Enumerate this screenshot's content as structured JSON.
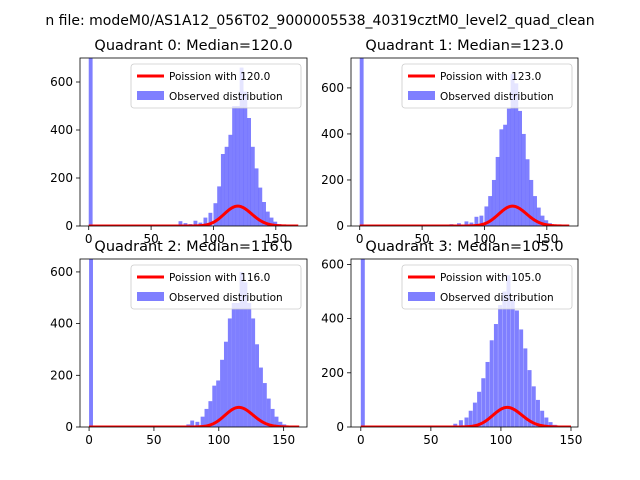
{
  "suptitle": "n file: modeM0/AS1A12_056T02_9000005538_40319cztM0_level2_quad_clean",
  "colors": {
    "bar": "#0000ff",
    "bar_alpha": 0.5,
    "fit_line": "#ff0000",
    "axis": "#000000"
  },
  "chart_data": [
    {
      "type": "bar",
      "title": "Quadrant 0: Median=120.0",
      "xlabel": "",
      "ylabel": "",
      "xlim": [
        -7,
        175
      ],
      "ylim": [
        0,
        700
      ],
      "xticks": [
        0,
        50,
        100,
        150
      ],
      "yticks": [
        0,
        200,
        400,
        600
      ],
      "grid": false,
      "legend_position": "upper-right",
      "series": [
        {
          "name": "Poission with 120.0",
          "kind": "line",
          "mean": 120.0,
          "scale": 2275,
          "x_range": [
            0,
            168
          ]
        },
        {
          "name": "Observed distribution",
          "kind": "histogram",
          "bin_width": 3.1,
          "bins": [
            {
              "x": 0,
              "y": 700
            },
            {
              "x": 3,
              "y": 3
            },
            {
              "x": 50,
              "y": 2
            },
            {
              "x": 65,
              "y": 3
            },
            {
              "x": 72,
              "y": 20
            },
            {
              "x": 76,
              "y": 12
            },
            {
              "x": 80,
              "y": 8
            },
            {
              "x": 84,
              "y": 22
            },
            {
              "x": 88,
              "y": 14
            },
            {
              "x": 92,
              "y": 35
            },
            {
              "x": 96,
              "y": 55
            },
            {
              "x": 100,
              "y": 95
            },
            {
              "x": 103,
              "y": 165
            },
            {
              "x": 106,
              "y": 300
            },
            {
              "x": 109,
              "y": 330
            },
            {
              "x": 112,
              "y": 380
            },
            {
              "x": 115,
              "y": 500
            },
            {
              "x": 118,
              "y": 500
            },
            {
              "x": 121,
              "y": 660
            },
            {
              "x": 124,
              "y": 560
            },
            {
              "x": 127,
              "y": 450
            },
            {
              "x": 130,
              "y": 330
            },
            {
              "x": 133,
              "y": 240
            },
            {
              "x": 136,
              "y": 160
            },
            {
              "x": 139,
              "y": 100
            },
            {
              "x": 142,
              "y": 60
            },
            {
              "x": 145,
              "y": 35
            },
            {
              "x": 148,
              "y": 18
            },
            {
              "x": 151,
              "y": 8
            },
            {
              "x": 154,
              "y": 4
            },
            {
              "x": 160,
              "y": 2
            }
          ]
        }
      ]
    },
    {
      "type": "bar",
      "title": "Quadrant 1: Median=123.0",
      "xlabel": "",
      "ylabel": "",
      "xlim": [
        -7,
        175
      ],
      "ylim": [
        0,
        730
      ],
      "xticks": [
        0,
        50,
        100,
        150
      ],
      "yticks": [
        0,
        200,
        400,
        600
      ],
      "grid": false,
      "legend_position": "upper-right",
      "series": [
        {
          "name": "Poission with 123.0",
          "kind": "line",
          "mean": 123.0,
          "scale": 2400,
          "x_range": [
            0,
            168
          ]
        },
        {
          "name": "Observed distribution",
          "kind": "histogram",
          "bin_width": 3.1,
          "bins": [
            {
              "x": 0,
              "y": 730
            },
            {
              "x": 3,
              "y": 3
            },
            {
              "x": 40,
              "y": 2
            },
            {
              "x": 72,
              "y": 8
            },
            {
              "x": 78,
              "y": 12
            },
            {
              "x": 84,
              "y": 20
            },
            {
              "x": 88,
              "y": 15
            },
            {
              "x": 92,
              "y": 40
            },
            {
              "x": 96,
              "y": 45
            },
            {
              "x": 100,
              "y": 85
            },
            {
              "x": 103,
              "y": 130
            },
            {
              "x": 106,
              "y": 200
            },
            {
              "x": 109,
              "y": 300
            },
            {
              "x": 112,
              "y": 420
            },
            {
              "x": 115,
              "y": 440
            },
            {
              "x": 118,
              "y": 510
            },
            {
              "x": 121,
              "y": 660
            },
            {
              "x": 124,
              "y": 620
            },
            {
              "x": 127,
              "y": 500
            },
            {
              "x": 130,
              "y": 400
            },
            {
              "x": 133,
              "y": 290
            },
            {
              "x": 136,
              "y": 200
            },
            {
              "x": 139,
              "y": 130
            },
            {
              "x": 142,
              "y": 80
            },
            {
              "x": 145,
              "y": 45
            },
            {
              "x": 148,
              "y": 25
            },
            {
              "x": 151,
              "y": 12
            },
            {
              "x": 154,
              "y": 6
            },
            {
              "x": 160,
              "y": 2
            }
          ]
        }
      ]
    },
    {
      "type": "bar",
      "title": "Quadrant 2: Median=116.0",
      "xlabel": "",
      "ylabel": "",
      "xlim": [
        -7,
        168
      ],
      "ylim": [
        0,
        650
      ],
      "xticks": [
        0,
        50,
        100,
        150
      ],
      "yticks": [
        0,
        200,
        400,
        600
      ],
      "grid": false,
      "legend_position": "upper-right",
      "series": [
        {
          "name": "Poission with 116.0",
          "kind": "line",
          "mean": 116.0,
          "scale": 2050,
          "x_range": [
            0,
            162
          ]
        },
        {
          "name": "Observed distribution",
          "kind": "histogram",
          "bin_width": 3.0,
          "bins": [
            {
              "x": 0,
              "y": 650
            },
            {
              "x": 3,
              "y": 2
            },
            {
              "x": 60,
              "y": 2
            },
            {
              "x": 68,
              "y": 4
            },
            {
              "x": 75,
              "y": 10
            },
            {
              "x": 78,
              "y": 25
            },
            {
              "x": 82,
              "y": 20
            },
            {
              "x": 86,
              "y": 40
            },
            {
              "x": 89,
              "y": 70
            },
            {
              "x": 92,
              "y": 100
            },
            {
              "x": 95,
              "y": 160
            },
            {
              "x": 98,
              "y": 180
            },
            {
              "x": 101,
              "y": 260
            },
            {
              "x": 104,
              "y": 330
            },
            {
              "x": 107,
              "y": 420
            },
            {
              "x": 110,
              "y": 480
            },
            {
              "x": 113,
              "y": 480
            },
            {
              "x": 116,
              "y": 600
            },
            {
              "x": 119,
              "y": 560
            },
            {
              "x": 122,
              "y": 480
            },
            {
              "x": 125,
              "y": 420
            },
            {
              "x": 128,
              "y": 320
            },
            {
              "x": 131,
              "y": 230
            },
            {
              "x": 134,
              "y": 170
            },
            {
              "x": 137,
              "y": 110
            },
            {
              "x": 140,
              "y": 70
            },
            {
              "x": 143,
              "y": 40
            },
            {
              "x": 146,
              "y": 20
            },
            {
              "x": 149,
              "y": 10
            },
            {
              "x": 155,
              "y": 3
            }
          ]
        }
      ]
    },
    {
      "type": "bar",
      "title": "Quadrant 3: Median=105.0",
      "xlabel": "",
      "ylabel": "",
      "xlim": [
        -7,
        155
      ],
      "ylim": [
        0,
        620
      ],
      "xticks": [
        0,
        50,
        100,
        150
      ],
      "yticks": [
        0,
        200,
        400,
        600
      ],
      "grid": false,
      "legend_position": "upper-right",
      "series": [
        {
          "name": "Poission with 105.0",
          "kind": "line",
          "mean": 105.0,
          "scale": 1860,
          "x_range": [
            0,
            150
          ]
        },
        {
          "name": "Observed distribution",
          "kind": "histogram",
          "bin_width": 2.85,
          "bins": [
            {
              "x": 0,
              "y": 620
            },
            {
              "x": 3,
              "y": 2
            },
            {
              "x": 45,
              "y": 2
            },
            {
              "x": 60,
              "y": 5
            },
            {
              "x": 66,
              "y": 12
            },
            {
              "x": 70,
              "y": 25
            },
            {
              "x": 74,
              "y": 35
            },
            {
              "x": 77,
              "y": 60
            },
            {
              "x": 80,
              "y": 90
            },
            {
              "x": 83,
              "y": 130
            },
            {
              "x": 86,
              "y": 180
            },
            {
              "x": 89,
              "y": 240
            },
            {
              "x": 92,
              "y": 320
            },
            {
              "x": 95,
              "y": 380
            },
            {
              "x": 98,
              "y": 450
            },
            {
              "x": 101,
              "y": 500
            },
            {
              "x": 104,
              "y": 560
            },
            {
              "x": 107,
              "y": 470
            },
            {
              "x": 110,
              "y": 430
            },
            {
              "x": 113,
              "y": 360
            },
            {
              "x": 116,
              "y": 290
            },
            {
              "x": 119,
              "y": 210
            },
            {
              "x": 122,
              "y": 150
            },
            {
              "x": 125,
              "y": 100
            },
            {
              "x": 128,
              "y": 60
            },
            {
              "x": 131,
              "y": 35
            },
            {
              "x": 134,
              "y": 18
            },
            {
              "x": 137,
              "y": 8
            },
            {
              "x": 142,
              "y": 3
            }
          ]
        }
      ]
    }
  ]
}
